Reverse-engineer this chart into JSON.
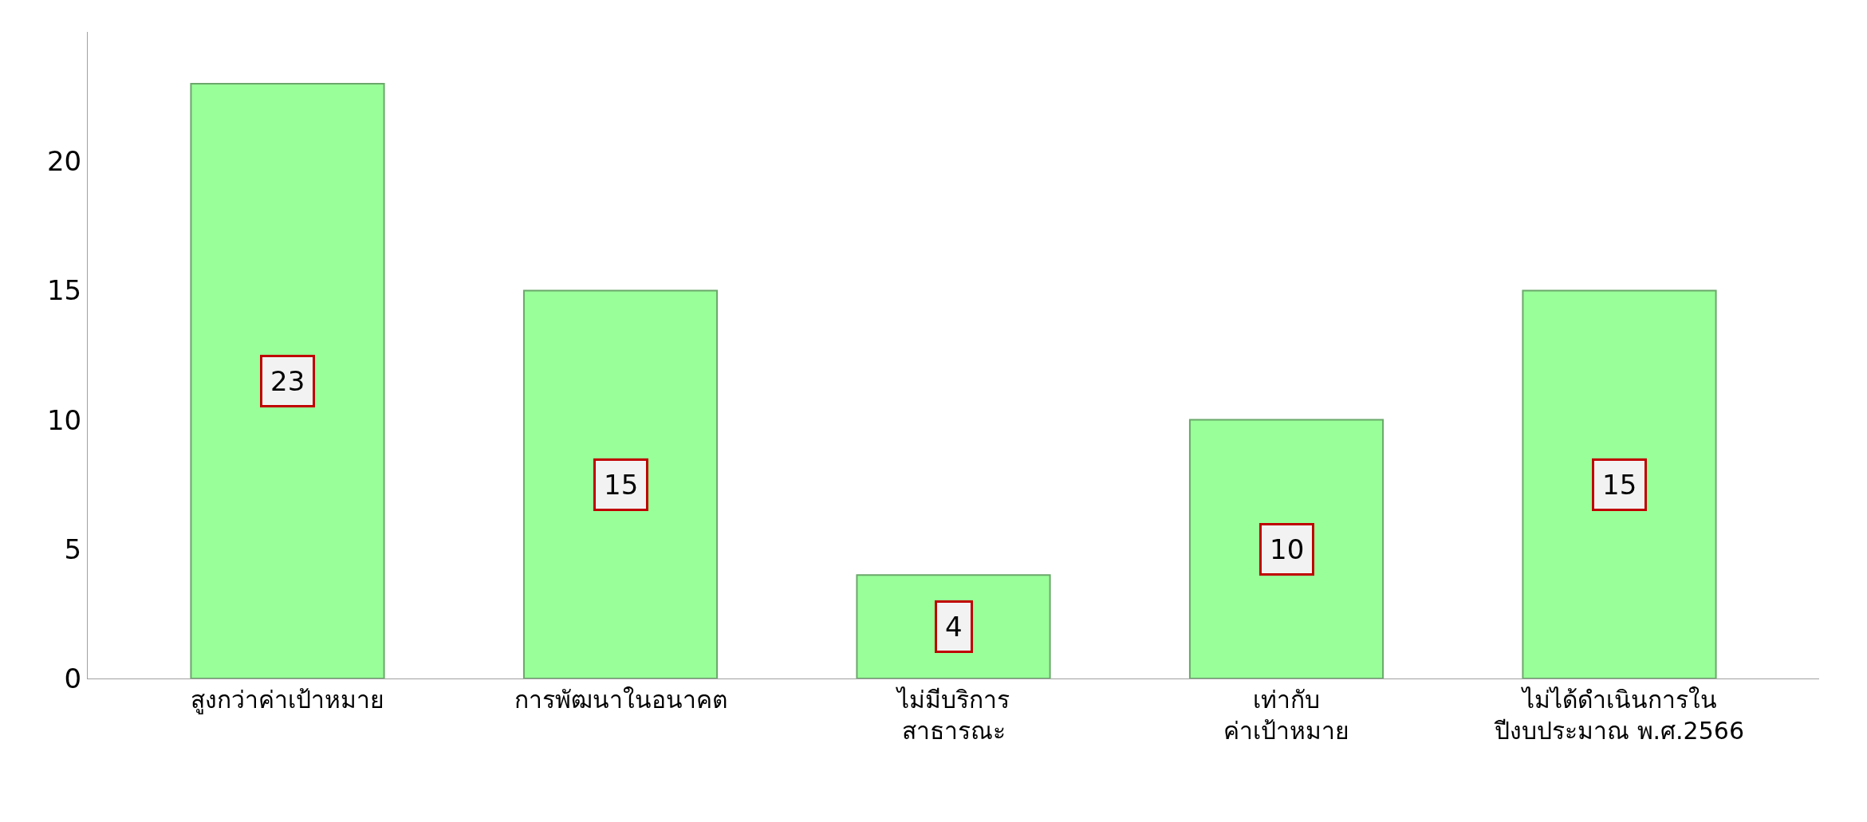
{
  "chart_data": {
    "type": "bar",
    "categories": [
      "สูงกว่าค่าเป้าหมาย",
      "การพัฒนาในอนาคต",
      "ไม่มีบริการ\nสาธารณะ",
      "เท่ากับ\nค่าเป้าหมาย",
      "ไม่ได้ดำเนินการใน\nปีงบประมาณ พ.ศ.2566"
    ],
    "values": [
      23,
      15,
      4,
      10,
      15
    ],
    "color": "#99ff99",
    "ylim": [
      0,
      25
    ],
    "yticks": [
      0,
      5,
      10,
      15,
      20
    ],
    "data_labels": true
  }
}
